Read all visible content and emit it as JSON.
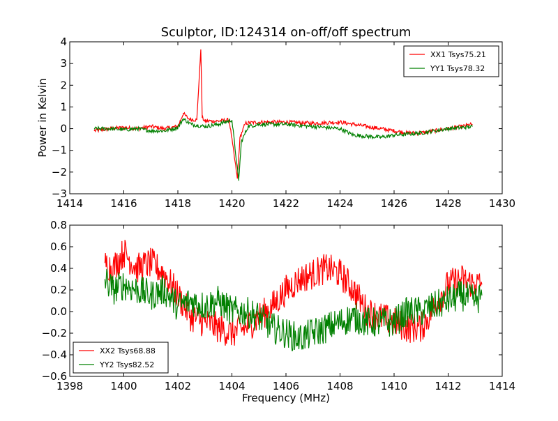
{
  "figure": {
    "title": "Sculptor, ID:124314 on-off/off spectrum"
  },
  "chart_data": [
    {
      "type": "line",
      "title": "Sculptor, ID:124314 on-off/off spectrum",
      "xlabel": "",
      "ylabel": "Power in Kelvin",
      "xlim": [
        1414,
        1430
      ],
      "ylim": [
        -3,
        4
      ],
      "xticks": [
        1414,
        1416,
        1418,
        1420,
        1422,
        1424,
        1426,
        1428,
        1430
      ],
      "yticks": [
        -3,
        -2,
        -1,
        0,
        1,
        2,
        3,
        4
      ],
      "legend_position": "top-right",
      "series": [
        {
          "name": "XX1 Tsys75.21",
          "color": "#ff0000",
          "x": [
            1414.9,
            1415.5,
            1416.0,
            1416.5,
            1417.0,
            1417.5,
            1418.0,
            1418.2,
            1418.4,
            1418.7,
            1418.85,
            1418.9,
            1419.0,
            1419.5,
            1419.9,
            1420.2,
            1420.3,
            1420.5,
            1421.0,
            1422.0,
            1423.0,
            1424.0,
            1424.5,
            1425.0,
            1425.5,
            1426.0,
            1426.5,
            1427.0,
            1427.5,
            1428.0,
            1428.5,
            1428.9
          ],
          "y": [
            -0.1,
            0.0,
            0.05,
            0.0,
            0.1,
            0.0,
            0.1,
            0.7,
            0.45,
            0.4,
            3.65,
            0.5,
            0.35,
            0.35,
            0.4,
            -2.3,
            -0.4,
            0.25,
            0.3,
            0.3,
            0.25,
            0.3,
            0.2,
            0.1,
            0.0,
            -0.1,
            -0.2,
            -0.2,
            -0.1,
            0.0,
            0.1,
            0.2
          ]
        },
        {
          "name": "YY1 Tsys78.32",
          "color": "#008000",
          "x": [
            1414.9,
            1415.5,
            1416.0,
            1416.5,
            1417.0,
            1417.5,
            1418.0,
            1418.2,
            1418.5,
            1419.0,
            1419.5,
            1420.0,
            1420.25,
            1420.35,
            1420.6,
            1421.0,
            1422.0,
            1423.0,
            1424.0,
            1424.5,
            1425.0,
            1425.5,
            1426.0,
            1426.5,
            1427.0,
            1427.5,
            1428.0,
            1428.5,
            1428.9
          ],
          "y": [
            0.0,
            0.0,
            -0.05,
            0.0,
            -0.1,
            -0.1,
            0.05,
            0.45,
            0.2,
            0.1,
            0.2,
            0.4,
            -2.4,
            -0.6,
            0.1,
            0.2,
            0.2,
            0.1,
            0.0,
            -0.3,
            -0.35,
            -0.4,
            -0.3,
            -0.25,
            -0.2,
            -0.1,
            0.0,
            0.05,
            0.1
          ]
        }
      ]
    },
    {
      "type": "line",
      "title": "",
      "xlabel": "Frequency (MHz)",
      "ylabel": "",
      "xlim": [
        1398,
        1414
      ],
      "ylim": [
        -0.6,
        0.8
      ],
      "xticks": [
        1398,
        1400,
        1402,
        1404,
        1406,
        1408,
        1410,
        1412,
        1414
      ],
      "yticks": [
        -0.6,
        -0.4,
        -0.2,
        0.0,
        0.2,
        0.4,
        0.6,
        0.8
      ],
      "ytick_labels": [
        "−0.6",
        "−0.4",
        "−0.2",
        "0.0",
        "0.2",
        "0.4",
        "0.6",
        "0.8"
      ],
      "legend_position": "bottom-left",
      "series": [
        {
          "name": "XX2 Tsys68.88",
          "color": "#ff0000",
          "x": [
            1399.3,
            1399.6,
            1400.0,
            1400.5,
            1401.0,
            1401.5,
            1402.0,
            1402.5,
            1403.0,
            1403.5,
            1404.0,
            1404.5,
            1405.0,
            1405.5,
            1406.0,
            1406.5,
            1407.0,
            1407.5,
            1408.0,
            1408.5,
            1409.0,
            1409.5,
            1410.0,
            1410.5,
            1411.0,
            1411.5,
            1412.0,
            1412.5,
            1413.0,
            1413.25
          ],
          "y": [
            0.45,
            0.4,
            0.55,
            0.4,
            0.45,
            0.35,
            0.15,
            -0.05,
            -0.1,
            -0.15,
            -0.2,
            -0.15,
            -0.05,
            0.05,
            0.2,
            0.3,
            0.35,
            0.4,
            0.35,
            0.2,
            0.0,
            -0.05,
            -0.1,
            -0.15,
            -0.15,
            0.05,
            0.25,
            0.3,
            0.25,
            0.25
          ]
        },
        {
          "name": "YY2 Tsys82.52",
          "color": "#008000",
          "x": [
            1399.3,
            1399.6,
            1400.0,
            1400.5,
            1401.0,
            1401.5,
            1402.0,
            1402.5,
            1403.0,
            1403.5,
            1404.0,
            1404.5,
            1405.0,
            1405.5,
            1406.0,
            1406.5,
            1407.0,
            1407.5,
            1408.0,
            1408.5,
            1409.0,
            1409.5,
            1410.0,
            1410.5,
            1411.0,
            1411.5,
            1412.0,
            1412.5,
            1413.0,
            1413.25
          ],
          "y": [
            0.3,
            0.2,
            0.25,
            0.2,
            0.15,
            0.2,
            0.05,
            0.1,
            0.05,
            0.1,
            0.0,
            0.0,
            -0.05,
            -0.15,
            -0.2,
            -0.25,
            -0.2,
            -0.15,
            -0.1,
            -0.05,
            -0.1,
            -0.1,
            -0.1,
            0.0,
            0.0,
            0.05,
            0.1,
            0.15,
            0.1,
            0.15
          ]
        }
      ]
    }
  ]
}
